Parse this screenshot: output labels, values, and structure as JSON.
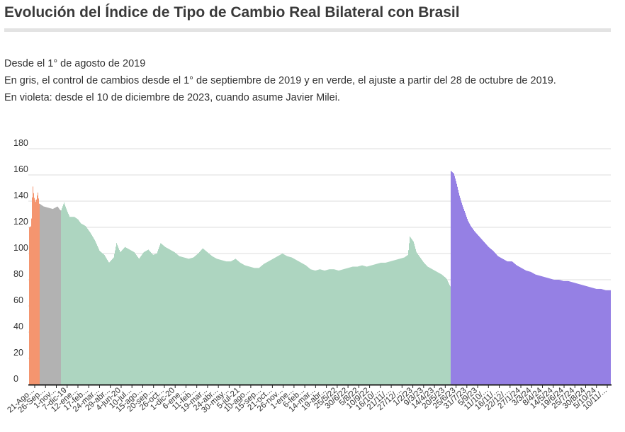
{
  "title": "Evolución del Índice de Tipo de Cambio Real Bilateral con Brasil",
  "description": [
    "Desde el 1° de agosto de 2019",
    "En gris, el control de cambios desde el 1° de septiembre de 2019 y en verde, el ajuste a partir del 28 de octubre de 2019.",
    "En violeta: desde el 10 de diciembre de 2023, cuando asume Javier Milei."
  ],
  "colors": {
    "orange": "#f4956f",
    "gray": "#b2b2b2",
    "green": "#add5c0",
    "violet": "#9580e4",
    "grid": "#dddddd",
    "axis": "#222222"
  },
  "chart_data": {
    "type": "bar",
    "title": "",
    "xlabel": "",
    "ylabel": "",
    "ylim": [
      0,
      180
    ],
    "yticks": [
      0,
      20,
      40,
      60,
      80,
      100,
      120,
      140,
      160,
      180
    ],
    "grid": true,
    "x_tick_labels": [
      "21-Ago...",
      "26-Sep...",
      "1-nov...",
      "7-dic-19",
      "12-ene...",
      "17-feb...",
      "24-mar...",
      "29-abr...",
      "4-jun-20",
      "10-jul...",
      "15-ago...",
      "20-sep...",
      "26-oct...",
      "1-dic-20",
      "6-ene...",
      "11-feb...",
      "19-mar...",
      "24-abr...",
      "30-may...",
      "5-jul-21",
      "10-ago...",
      "15-sep...",
      "21-oct...",
      "26-nov...",
      "1-ene...",
      "6-feb...",
      "14-mar...",
      "19-abr...",
      "25/5/22",
      "30/6/22",
      "5/8/22",
      "10/9/22",
      "16/10/...",
      "21/11/...",
      "27/12/...",
      "1/2/23",
      "9/3/23",
      "14/4/23",
      "20/5/23",
      "25/6/23",
      "31/7/23",
      "5/9/23",
      "11/10/...",
      "16/11/...",
      "22/12/...",
      "27/1/24",
      "3/3/24",
      "8/4/24",
      "14/5/24",
      "19/6/24",
      "25/7/24",
      "30/8/24",
      "5/10/24",
      "10/11/..."
    ],
    "segments": [
      {
        "color_key": "orange",
        "points": [
          [
            0,
            120
          ],
          [
            0.4,
            121
          ],
          [
            0.7,
            153
          ],
          [
            1.0,
            143
          ],
          [
            1.4,
            139
          ],
          [
            1.8,
            147
          ],
          [
            2.1,
            138
          ]
        ]
      },
      {
        "color_key": "gray",
        "points": [
          [
            2.2,
            138
          ],
          [
            3,
            136
          ],
          [
            4,
            135
          ],
          [
            5,
            134
          ],
          [
            6,
            136
          ],
          [
            6.6,
            133
          ]
        ]
      },
      {
        "color_key": "green",
        "points": [
          [
            6.7,
            132
          ],
          [
            7.4,
            139
          ],
          [
            8,
            133
          ],
          [
            8.6,
            128
          ],
          [
            9.6,
            128
          ],
          [
            10.4,
            126
          ],
          [
            11,
            123
          ],
          [
            12,
            121
          ],
          [
            13,
            116
          ],
          [
            14,
            110
          ],
          [
            15,
            102
          ],
          [
            16,
            99
          ],
          [
            17,
            93
          ],
          [
            18,
            97
          ],
          [
            18.6,
            108
          ],
          [
            19.4,
            101
          ],
          [
            20.4,
            105
          ],
          [
            21.4,
            103
          ],
          [
            22.4,
            101
          ],
          [
            23.4,
            96
          ],
          [
            24.4,
            101
          ],
          [
            25.4,
            103
          ],
          [
            26.4,
            99
          ],
          [
            27.2,
            100
          ],
          [
            28,
            108
          ],
          [
            29,
            105
          ],
          [
            30,
            103
          ],
          [
            31,
            101
          ],
          [
            32,
            98
          ],
          [
            33,
            97
          ],
          [
            34,
            96
          ],
          [
            35,
            97
          ],
          [
            36,
            100
          ],
          [
            37,
            104
          ],
          [
            38,
            101
          ],
          [
            39,
            98
          ],
          [
            40,
            96
          ],
          [
            41,
            95
          ],
          [
            42,
            94
          ],
          [
            43,
            94
          ],
          [
            44,
            96
          ],
          [
            45,
            93
          ],
          [
            46,
            91
          ],
          [
            47,
            90
          ],
          [
            48,
            89
          ],
          [
            49,
            89
          ],
          [
            50,
            92
          ],
          [
            51,
            94
          ],
          [
            52,
            96
          ],
          [
            53,
            98
          ],
          [
            54,
            100
          ],
          [
            55,
            98
          ],
          [
            56,
            97
          ],
          [
            57,
            95
          ],
          [
            58,
            93
          ],
          [
            59,
            91
          ],
          [
            60,
            88
          ],
          [
            61,
            87
          ],
          [
            62,
            88
          ],
          [
            63,
            87
          ],
          [
            64,
            88
          ],
          [
            65,
            88
          ],
          [
            66,
            87
          ],
          [
            67,
            88
          ],
          [
            68,
            89
          ],
          [
            69,
            90
          ],
          [
            70,
            90
          ],
          [
            71,
            91
          ],
          [
            72,
            90
          ],
          [
            73,
            91
          ],
          [
            74,
            92
          ],
          [
            75,
            93
          ],
          [
            76,
            93
          ],
          [
            77,
            94
          ],
          [
            78,
            95
          ],
          [
            79,
            96
          ],
          [
            80,
            97
          ],
          [
            80.8,
            99
          ],
          [
            81.2,
            113
          ],
          [
            82,
            109
          ],
          [
            82.6,
            101
          ],
          [
            83.4,
            97
          ],
          [
            84.2,
            93
          ],
          [
            85,
            90
          ],
          [
            86,
            88
          ],
          [
            87,
            86
          ],
          [
            88,
            84
          ],
          [
            89,
            81
          ],
          [
            89.8,
            75
          ]
        ]
      },
      {
        "color_key": "violet",
        "points": [
          [
            90,
            163
          ],
          [
            90.6,
            161
          ],
          [
            91.2,
            153
          ],
          [
            91.8,
            144
          ],
          [
            92.4,
            137
          ],
          [
            93,
            131
          ],
          [
            93.6,
            125
          ],
          [
            94.2,
            121
          ],
          [
            95,
            117
          ],
          [
            96,
            113
          ],
          [
            97,
            109
          ],
          [
            98,
            105
          ],
          [
            99,
            102
          ],
          [
            100,
            98
          ],
          [
            101,
            96
          ],
          [
            102,
            94
          ],
          [
            103,
            94
          ],
          [
            104,
            91
          ],
          [
            105,
            89
          ],
          [
            106,
            87
          ],
          [
            107,
            86
          ],
          [
            108,
            84
          ],
          [
            109,
            83
          ],
          [
            110,
            82
          ],
          [
            111,
            81
          ],
          [
            112,
            80
          ],
          [
            113,
            80
          ],
          [
            114,
            79
          ],
          [
            115,
            79
          ],
          [
            116,
            78
          ],
          [
            117,
            77
          ],
          [
            118,
            76
          ],
          [
            119,
            75
          ],
          [
            120,
            74
          ],
          [
            121,
            73
          ],
          [
            122,
            73
          ],
          [
            123,
            72
          ],
          [
            124,
            72
          ]
        ]
      }
    ]
  }
}
